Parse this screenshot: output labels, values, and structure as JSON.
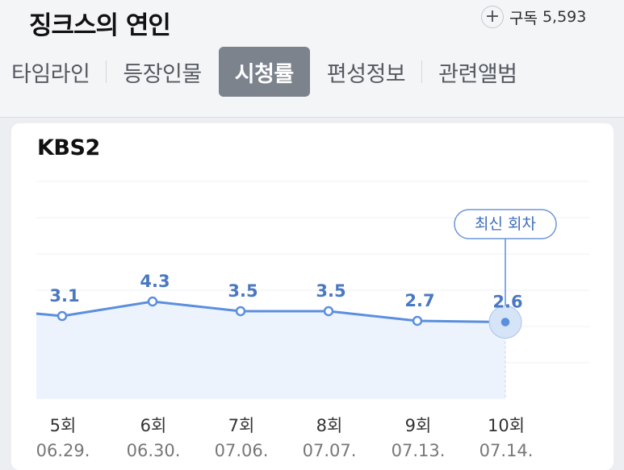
{
  "header": {
    "title": "징크스의 연인",
    "subscribe_icon": "plus-icon",
    "subscribe_label": "구독",
    "subscriber_count": "5,593"
  },
  "tabs": [
    {
      "label": "타임라인",
      "active": false
    },
    {
      "label": "등장인물",
      "active": false
    },
    {
      "label": "시청률",
      "active": true
    },
    {
      "label": "편성정보",
      "active": false
    },
    {
      "label": "관련앨범",
      "active": false
    }
  ],
  "card": {
    "channel": "KBS2",
    "latest_badge": "최신 회차"
  },
  "colors": {
    "accent": "#5b8fdd",
    "area_fill": "#edf3fd",
    "label": "#4a78c2",
    "active_tab": "#7d838d"
  },
  "chart_data": {
    "type": "line",
    "y_gridlines": true,
    "episodes": [
      "5회",
      "6회",
      "7회",
      "8회",
      "9회",
      "10회"
    ],
    "dates": [
      "06.29.",
      "06.30.",
      "07.06.",
      "07.07.",
      "07.13.",
      "07.14."
    ],
    "values": [
      3.1,
      4.3,
      3.5,
      3.5,
      2.7,
      2.6
    ],
    "value_labels": [
      "3.1",
      "4.3",
      "3.5",
      "3.5",
      "2.7",
      "2.6"
    ],
    "latest_index": 5
  }
}
